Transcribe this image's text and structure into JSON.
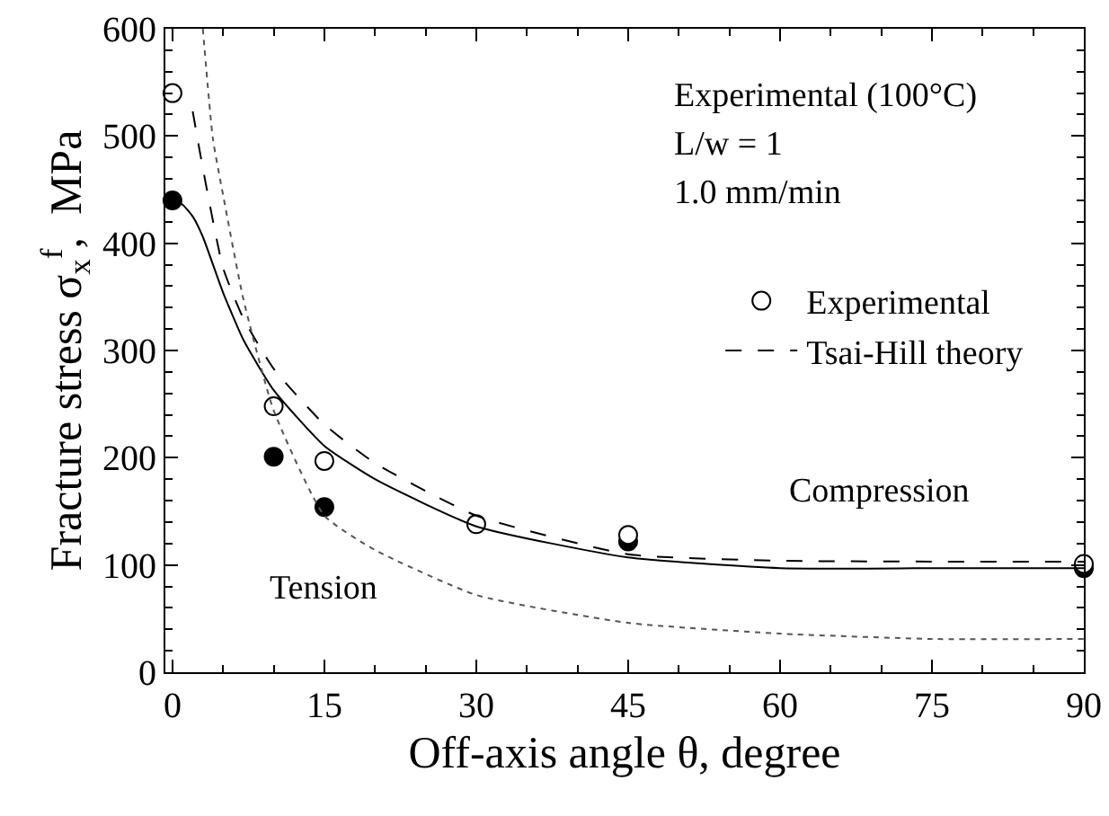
{
  "chart_data": {
    "type": "scatter",
    "xlabel": "Off-axis angle θ, degree",
    "ylabel": "Fracture stress σ$_{x}$$^{f}$,  MPa",
    "xlim": [
      -0.7,
      90
    ],
    "xticks": [
      0,
      15,
      30,
      45,
      60,
      75,
      90
    ],
    "ylim": [
      0,
      600
    ],
    "yticks": [
      0,
      100,
      200,
      300,
      400,
      500,
      600
    ],
    "grid": false,
    "legend": "top right",
    "series": [
      {
        "marker": "circle",
        "color": "#000000",
        "x": [
          0,
          10,
          15,
          45,
          90
        ],
        "values": [
          440,
          201,
          154,
          122,
          97
        ]
      },
      {
        "name": "Experimental",
        "marker": "circle",
        "color": "#ffffff",
        "x": [
          0,
          10,
          15,
          30,
          45,
          90
        ],
        "values": [
          540,
          248,
          197,
          138,
          128,
          101
        ]
      },
      {
        "name": "Tsai-Hill theory",
        "type": "line",
        "marker": "none",
        "color": "#000000",
        "line_style": "dashed",
        "x": [
          2,
          3,
          5,
          7,
          10,
          15,
          20,
          30,
          45,
          60,
          90
        ],
        "values": [
          523,
          470,
          377,
          330,
          283,
          231,
          195,
          146,
          110,
          104,
          103
        ]
      },
      {
        "type": "line",
        "marker": "none",
        "color": "#000000",
        "line_style": "solid",
        "x": [
          0,
          1,
          2,
          3,
          5,
          7,
          10,
          15,
          20,
          30,
          45,
          60,
          75,
          90
        ],
        "values": [
          440,
          436,
          425,
          406,
          354,
          310,
          263,
          211,
          180,
          136,
          107,
          97,
          97,
          97
        ]
      },
      {
        "type": "line",
        "marker": "none",
        "color": "#555555",
        "line_style": "dotted",
        "x": [
          3,
          4,
          5,
          7,
          10,
          15,
          20,
          30,
          45,
          60,
          75,
          90
        ],
        "values": [
          600,
          497,
          445,
          348,
          244,
          146,
          114,
          72,
          46,
          36,
          31,
          31
        ]
      }
    ],
    "annotations": [
      "Experimental (100°C)",
      "L/w = 1",
      "1.0 mm/min",
      "Compression",
      "Tension"
    ]
  }
}
